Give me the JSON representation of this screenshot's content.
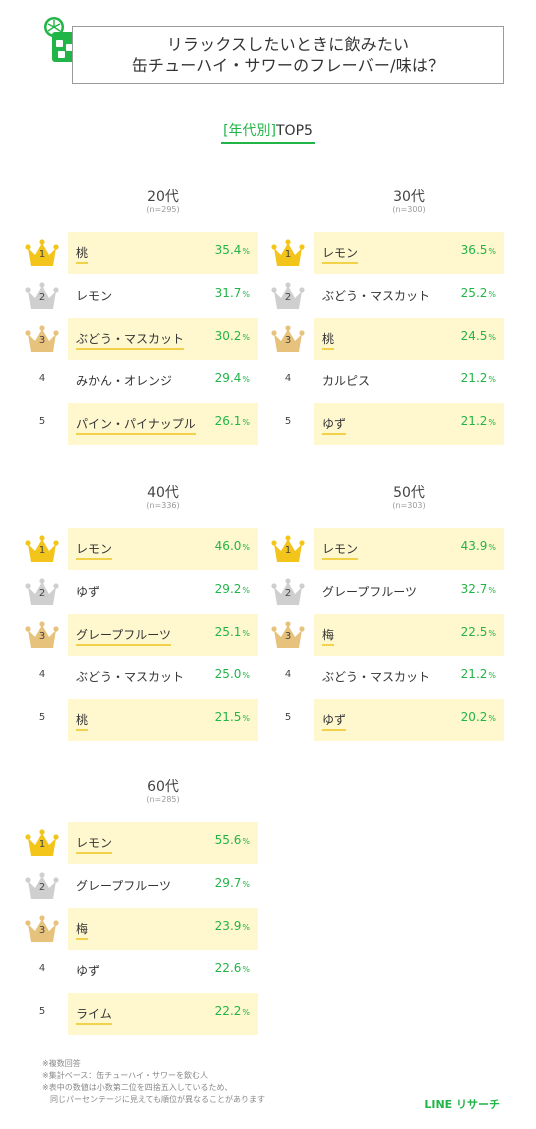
{
  "header": {
    "icon": "glass-with-lime-icon",
    "title_line1": "リラックスしたいときに飲みたい",
    "title_line2": "缶チューハイ・サワーのフレーバー/味は？"
  },
  "subtitle": {
    "bracket_text": "[年代別]",
    "rest": "TOP5"
  },
  "colors": {
    "accent_green": "#21b547",
    "highlight_bg": "#fff8cf",
    "gold": "#f3c51a",
    "silver": "#cfcfcf",
    "bronze": "#e7c27c"
  },
  "chart_data": [
    {
      "type": "table",
      "title": "20代",
      "n": "(n=295)",
      "items": [
        {
          "rank": "1",
          "label": "桃",
          "value": 35.4
        },
        {
          "rank": "2",
          "label": "レモン",
          "value": 31.7
        },
        {
          "rank": "3",
          "label": "ぶどう・マスカット",
          "value": 30.2
        },
        {
          "rank": "4",
          "label": "みかん・オレンジ",
          "value": 29.4
        },
        {
          "rank": "5",
          "label": "パイン・パイナップル",
          "value": 26.1
        }
      ]
    },
    {
      "type": "table",
      "title": "30代",
      "n": "(n=300)",
      "items": [
        {
          "rank": "1",
          "label": "レモン",
          "value": 36.5
        },
        {
          "rank": "2",
          "label": "ぶどう・マスカット",
          "value": 25.2
        },
        {
          "rank": "3",
          "label": "桃",
          "value": 24.5
        },
        {
          "rank": "4",
          "label": "カルピス",
          "value": 21.2
        },
        {
          "rank": "5",
          "label": "ゆず",
          "value": 21.2
        }
      ]
    },
    {
      "type": "table",
      "title": "40代",
      "n": "(n=336)",
      "items": [
        {
          "rank": "1",
          "label": "レモン",
          "value": 46.0
        },
        {
          "rank": "2",
          "label": "ゆず",
          "value": 29.2
        },
        {
          "rank": "3",
          "label": "グレープフルーツ",
          "value": 25.1
        },
        {
          "rank": "4",
          "label": "ぶどう・マスカット",
          "value": 25.0
        },
        {
          "rank": "5",
          "label": "桃",
          "value": 21.5
        }
      ]
    },
    {
      "type": "table",
      "title": "50代",
      "n": "(n=303)",
      "items": [
        {
          "rank": "1",
          "label": "レモン",
          "value": 43.9
        },
        {
          "rank": "2",
          "label": "グレープフルーツ",
          "value": 32.7
        },
        {
          "rank": "3",
          "label": "梅",
          "value": 22.5
        },
        {
          "rank": "4",
          "label": "ぶどう・マスカット",
          "value": 21.2
        },
        {
          "rank": "5",
          "label": "ゆず",
          "value": 20.2
        }
      ]
    },
    {
      "type": "table",
      "title": "60代",
      "n": "(n=285)",
      "items": [
        {
          "rank": "1",
          "label": "レモン",
          "value": 55.6
        },
        {
          "rank": "2",
          "label": "グレープフルーツ",
          "value": 29.7
        },
        {
          "rank": "3",
          "label": "梅",
          "value": 23.9
        },
        {
          "rank": "4",
          "label": "ゆず",
          "value": 22.6
        },
        {
          "rank": "5",
          "label": "ライム",
          "value": 22.2
        }
      ]
    }
  ],
  "unit": "%",
  "footnotes": [
    "※複数回答",
    "※集計ベース：缶チューハイ・サワーを飲む人",
    "※表中の数値は小数第二位を四捨五入しているため、",
    "同じパーセンテージに見えても順位が異なることがあります"
  ],
  "logo": "LINE リサーチ"
}
